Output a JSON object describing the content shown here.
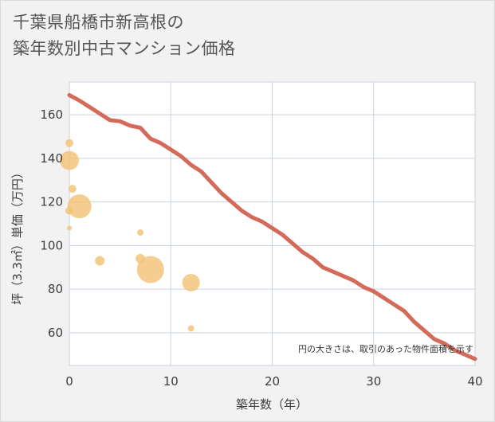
{
  "title_lines": [
    "千葉県船橋市新高根の",
    "築年数別中古マンション価格"
  ],
  "chart_data": {
    "type": "scatter+line",
    "xlabel": "築年数（年）",
    "ylabel": "坪（3.3㎡）単価（万円）",
    "xlim": [
      0,
      40
    ],
    "ylim": [
      45,
      175
    ],
    "xticks": [
      0,
      10,
      20,
      30,
      40
    ],
    "yticks": [
      60,
      80,
      100,
      120,
      140,
      160
    ],
    "note": "円の大きさは、取引のあった物件面積を示す",
    "colors": {
      "line": "#d46a5a",
      "bubble": "#f3c277",
      "grid": "#c9d3df"
    },
    "line": {
      "name": "trend",
      "x": [
        0,
        1,
        2,
        3,
        4,
        5,
        6,
        7,
        8,
        9,
        10,
        11,
        12,
        13,
        14,
        15,
        16,
        17,
        18,
        19,
        20,
        21,
        22,
        23,
        24,
        25,
        26,
        27,
        28,
        29,
        30,
        31,
        32,
        33,
        34,
        35,
        36,
        37,
        38,
        39,
        40
      ],
      "y": [
        169,
        166.5,
        163.5,
        160.5,
        157.5,
        157,
        155,
        154,
        149,
        147,
        144,
        141,
        137,
        134,
        129,
        124,
        120,
        116,
        113,
        111,
        108,
        105,
        101,
        97,
        94,
        90,
        88,
        86,
        84,
        81,
        79,
        76,
        73,
        70,
        65,
        61,
        57,
        55,
        52,
        50,
        48
      ]
    },
    "bubbles": [
      {
        "x": 0,
        "y": 147,
        "size": 5
      },
      {
        "x": 0,
        "y": 139,
        "size": 12
      },
      {
        "x": 0.3,
        "y": 126,
        "size": 5
      },
      {
        "x": 0,
        "y": 116,
        "size": 5
      },
      {
        "x": 0,
        "y": 108,
        "size": 3
      },
      {
        "x": 1,
        "y": 118,
        "size": 15
      },
      {
        "x": 3,
        "y": 93,
        "size": 6
      },
      {
        "x": 7,
        "y": 106,
        "size": 4
      },
      {
        "x": 7,
        "y": 94,
        "size": 6
      },
      {
        "x": 8,
        "y": 89,
        "size": 17
      },
      {
        "x": 12,
        "y": 83,
        "size": 11
      },
      {
        "x": 12,
        "y": 62,
        "size": 4
      }
    ]
  }
}
